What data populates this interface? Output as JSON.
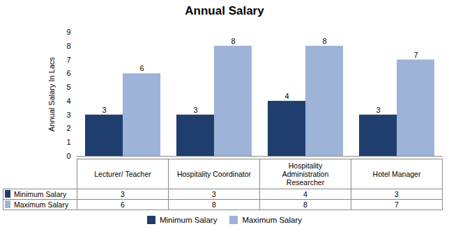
{
  "chart_data": {
    "type": "bar",
    "title": "Annual Salary",
    "y_label": "Annual Salary In Lacs",
    "categories": [
      "Lecturer/ Teacher",
      "Hospitality Coordinator",
      "Hospitality\nAdministration\nResearcher",
      "Hotel Manager"
    ],
    "series": [
      {
        "name": "Minimum Salary",
        "color": "#1F3E6E",
        "values": [
          3,
          3,
          4,
          3
        ]
      },
      {
        "name": "Maximum Salary",
        "color": "#9EB3D8",
        "values": [
          6,
          8,
          8,
          7
        ]
      }
    ],
    "ylim": [
      0,
      9
    ],
    "yticks": [
      0,
      1,
      2,
      3,
      4,
      5,
      6,
      7,
      8,
      9
    ],
    "grid": false,
    "data_labels": true,
    "legend": "bottom"
  }
}
